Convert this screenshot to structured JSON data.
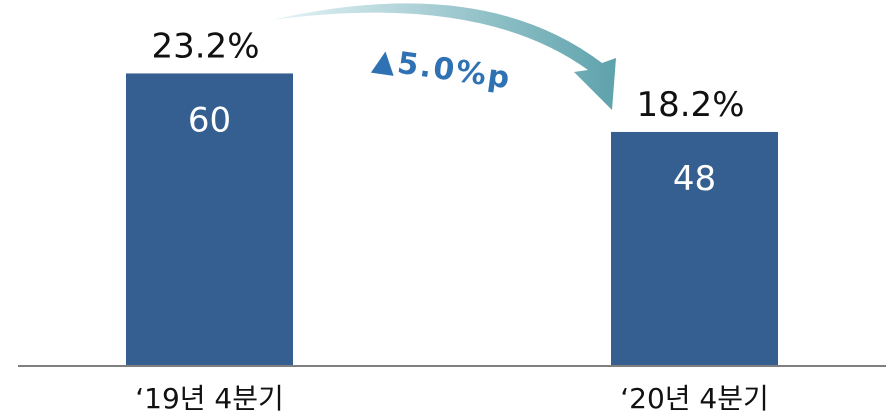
{
  "chart_data": {
    "type": "bar",
    "categories": [
      "‘19년 4분기",
      "‘20년 4분기"
    ],
    "values": [
      60,
      48
    ],
    "rates": [
      "23.2%",
      "18.2%"
    ],
    "value_labels": [
      "60",
      "48"
    ],
    "change_label": "▲5.0%p",
    "ylim": [
      0,
      100
    ],
    "grid": false,
    "title": "",
    "xlabel": "",
    "ylabel": ""
  },
  "colors": {
    "bar": "#365f91",
    "axis": "#7f7f7f",
    "arrow_start": "#dff1f3",
    "arrow_end": "#5ea2ac",
    "change_text": "#2f72b3"
  }
}
